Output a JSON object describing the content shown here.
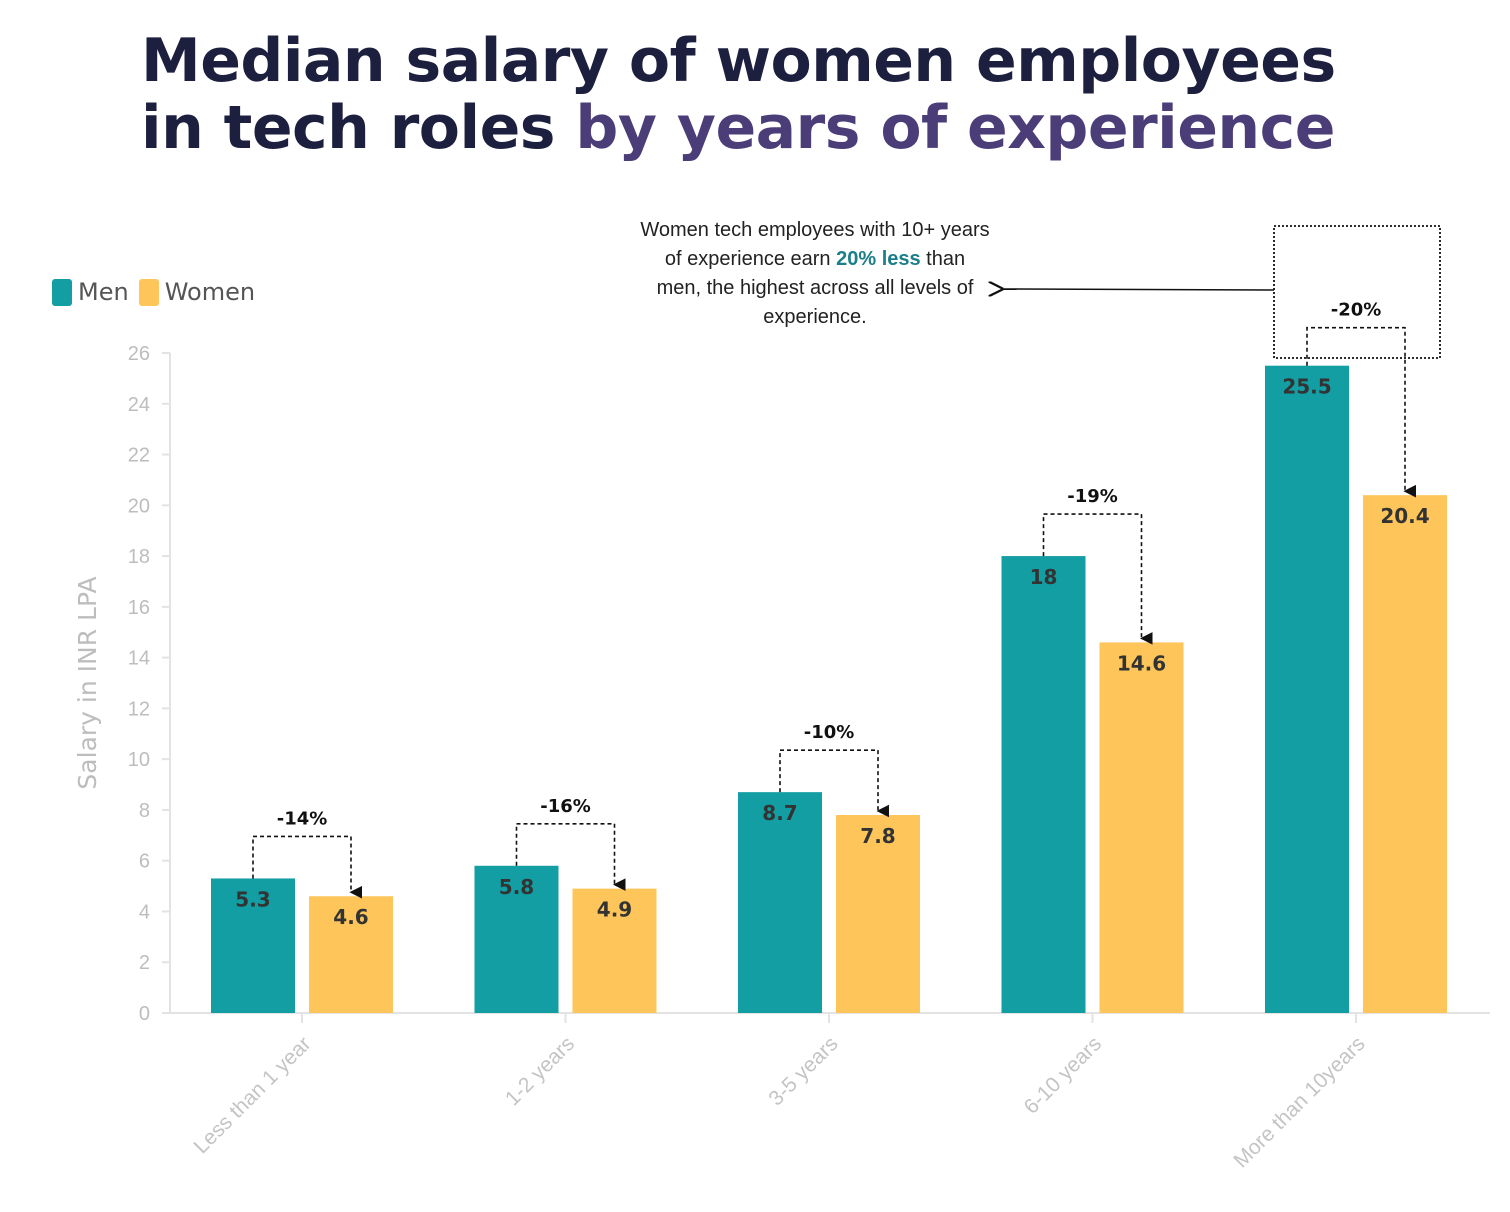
{
  "title": {
    "line1": "Median salary of women employees",
    "line2_plain": "in tech roles ",
    "line2_highlight": "by years of experience"
  },
  "callout": {
    "part1": "Women tech employees with 10+ years of experience earn ",
    "emphasis": "20% less",
    "part2": " than men, the highest across all levels of experience."
  },
  "colors": {
    "men": "#129ea3",
    "women": "#fec65a",
    "title": "#1d1f3f",
    "title_highlight": "#4b3d78",
    "callout_emphasis": "#1b7f8a"
  },
  "chart_data": {
    "type": "bar",
    "title": "",
    "xlabel": "",
    "ylabel": "Salary in INR LPA",
    "ylim": [
      0,
      26
    ],
    "yticks": [
      0,
      2,
      4,
      6,
      8,
      10,
      12,
      14,
      16,
      18,
      20,
      22,
      24,
      26
    ],
    "categories": [
      "Less than 1 year",
      "1-2 years",
      "3-5 years",
      "6-10 years",
      "More than 10years"
    ],
    "series": [
      {
        "name": "Men",
        "values": [
          5.3,
          5.8,
          8.7,
          18,
          25.5
        ]
      },
      {
        "name": "Women",
        "values": [
          4.6,
          4.9,
          7.8,
          14.6,
          20.4
        ]
      }
    ],
    "gap_labels": [
      "-14%",
      "-16%",
      "-10%",
      "-19%",
      "-20%"
    ],
    "legend_position": "top-left",
    "grid": false
  }
}
